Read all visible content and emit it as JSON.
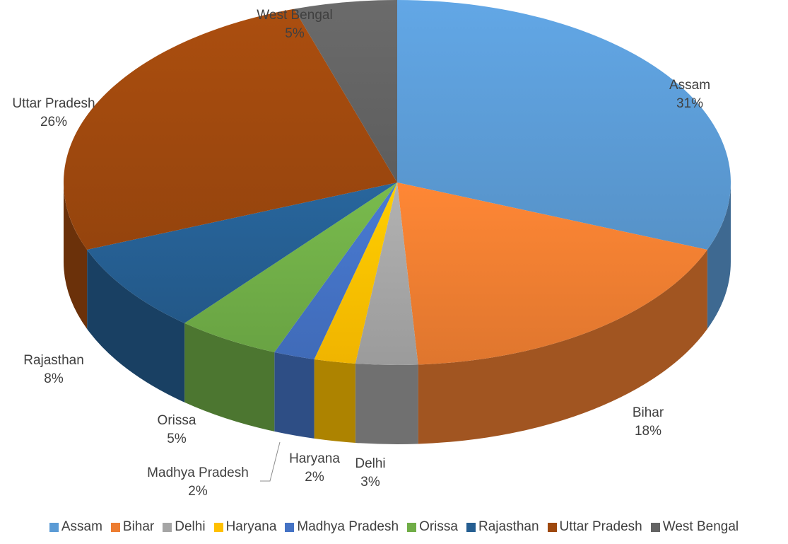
{
  "chart_data": {
    "type": "pie",
    "style": "3d",
    "legend_position": "bottom",
    "slices": [
      {
        "label": "Assam",
        "value": 31,
        "value_label": "31%",
        "color": "#5B9BD5"
      },
      {
        "label": "Bihar",
        "value": 18,
        "value_label": "18%",
        "color": "#ED7D31"
      },
      {
        "label": "Delhi",
        "value": 3,
        "value_label": "3%",
        "color": "#A5A5A5"
      },
      {
        "label": "Haryana",
        "value": 2,
        "value_label": "2%",
        "color": "#FFC000"
      },
      {
        "label": "Madhya Pradesh",
        "value": 2,
        "value_label": "2%",
        "color": "#4472C4"
      },
      {
        "label": "Orissa",
        "value": 5,
        "value_label": "5%",
        "color": "#70AD47"
      },
      {
        "label": "Rajasthan",
        "value": 8,
        "value_label": "8%",
        "color": "#255E91"
      },
      {
        "label": "Uttar Pradesh",
        "value": 26,
        "value_label": "26%",
        "color": "#9E480E"
      },
      {
        "label": "West Bengal",
        "value": 5,
        "value_label": "5%",
        "color": "#636363"
      }
    ]
  }
}
